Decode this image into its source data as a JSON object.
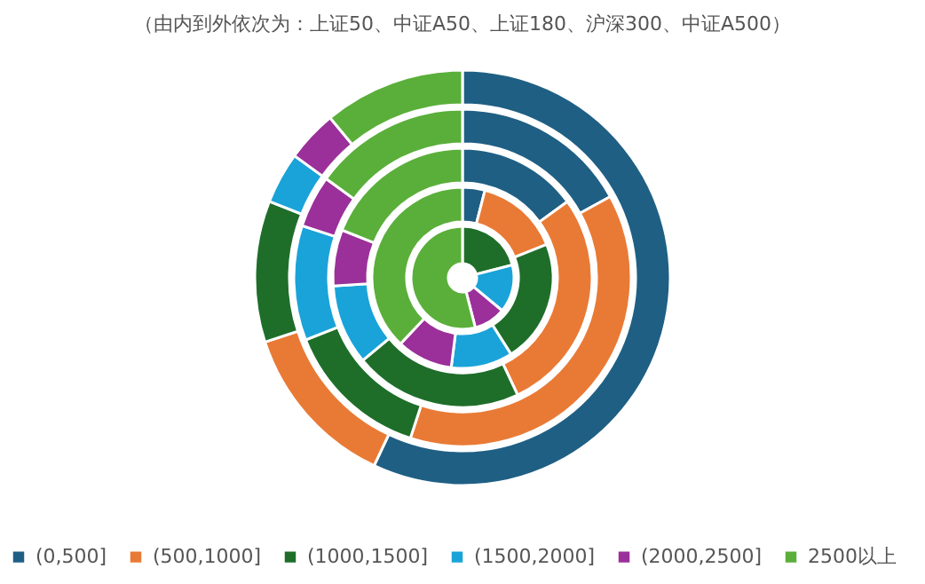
{
  "chart_data": {
    "type": "donut",
    "title": "（由内到外依次为：上证50、中证A50、上证180、沪深300、中证A500）",
    "categories": [
      "(0,500]",
      "(500,1000]",
      "(1000,1500]",
      "(1500,2000]",
      "(2000,2500]",
      "2500以上"
    ],
    "colors": [
      "#1f5f84",
      "#e97a35",
      "#1e6e2a",
      "#1aa3d9",
      "#9b309a",
      "#5aaf3a"
    ],
    "series": [
      {
        "values": [
          0,
          0,
          21,
          15,
          10,
          54
        ]
      },
      {
        "values": [
          4,
          15,
          22,
          11,
          10,
          38
        ]
      },
      {
        "values": [
          15,
          28,
          21,
          10,
          7,
          19
        ]
      },
      {
        "values": [
          17,
          38,
          14,
          11,
          5,
          15
        ]
      },
      {
        "values": [
          57,
          13,
          11,
          4,
          4,
          11
        ]
      }
    ],
    "legend": "bottom"
  }
}
